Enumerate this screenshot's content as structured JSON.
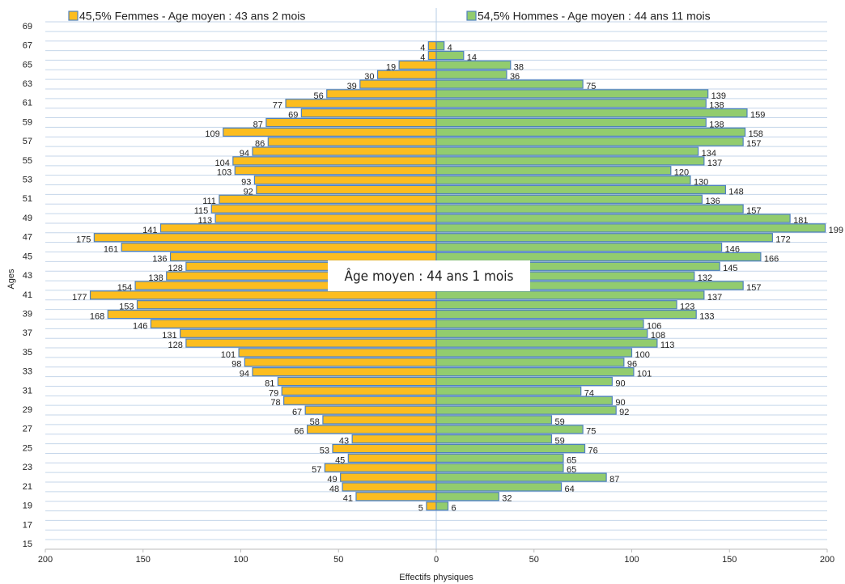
{
  "chart_data": {
    "type": "pyramid",
    "x_label": "Effectifs physiques",
    "y_label": "Ages",
    "annotation": "Âge moyen : 44 ans 1 mois",
    "categories": [
      "15",
      null,
      "17",
      null,
      "19",
      null,
      "21",
      null,
      "23",
      null,
      "25",
      null,
      "27",
      null,
      "29",
      null,
      "31",
      null,
      "33",
      null,
      "35",
      null,
      "37",
      null,
      "39",
      null,
      "41",
      null,
      "43",
      null,
      "45",
      null,
      "47",
      null,
      "49",
      null,
      "51",
      null,
      "53",
      null,
      "55",
      null,
      "57",
      null,
      "59",
      null,
      "61",
      null,
      "63",
      null,
      "65",
      null,
      "67",
      null,
      "69"
    ],
    "series": [
      {
        "name": "45,5% Femmes - Age moyen : 43 ans 2 mois",
        "color": "#fcbd1f",
        "values": [
          null,
          null,
          null,
          null,
          -5,
          -41,
          -48,
          -49,
          -57,
          -45,
          -53,
          -43,
          -66,
          -58,
          -67,
          -78,
          -79,
          -81,
          -94,
          -98,
          -101,
          -128,
          -131,
          -146,
          -168,
          -153,
          -177,
          -154,
          -138,
          -128,
          -136,
          -161,
          -175,
          -141,
          -113,
          -115,
          -111,
          -92,
          -93,
          -103,
          -104,
          -94,
          -86,
          -109,
          -87,
          -69,
          -77,
          -56,
          -39,
          -30,
          -19,
          -4,
          -4,
          null,
          null
        ],
        "value_labels": [
          null,
          null,
          null,
          null,
          "5",
          "41",
          "48",
          "49",
          "57",
          "45",
          "53",
          "43",
          "66",
          "58",
          "67",
          "78",
          "79",
          "81",
          "94",
          "98",
          "101",
          "128",
          "131",
          "146",
          "168",
          "153",
          "177",
          "154",
          "138",
          "128",
          "136",
          "161",
          "175",
          "141",
          "113",
          "115",
          "111",
          "92",
          "93",
          "103",
          "104",
          "94",
          "86",
          "109",
          "87",
          "69",
          "77",
          "56",
          "39",
          "30",
          "19",
          "4",
          "4",
          null,
          null
        ]
      },
      {
        "name": "54,5% Hommes - Age moyen : 44 ans 11 mois",
        "color": "#92cc6e",
        "values": [
          null,
          null,
          null,
          null,
          6,
          32,
          64,
          87,
          65,
          65,
          76,
          59,
          75,
          59,
          92,
          90,
          74,
          90,
          101,
          96,
          100,
          113,
          108,
          106,
          133,
          123,
          137,
          157,
          132,
          145,
          166,
          146,
          172,
          199,
          181,
          157,
          136,
          148,
          130,
          120,
          137,
          134,
          157,
          158,
          138,
          159,
          138,
          139,
          75,
          36,
          38,
          14,
          4,
          null,
          null
        ]
      }
    ],
    "bar_edge_color": "#4f81bd",
    "xlim": [
      -200,
      200
    ],
    "xticks": [
      {
        "value": -200,
        "label": "200"
      },
      {
        "value": -150,
        "label": "150"
      },
      {
        "value": -100,
        "label": "100"
      },
      {
        "value": -50,
        "label": "50"
      },
      0,
      50,
      100,
      150,
      200
    ],
    "grid": true
  }
}
